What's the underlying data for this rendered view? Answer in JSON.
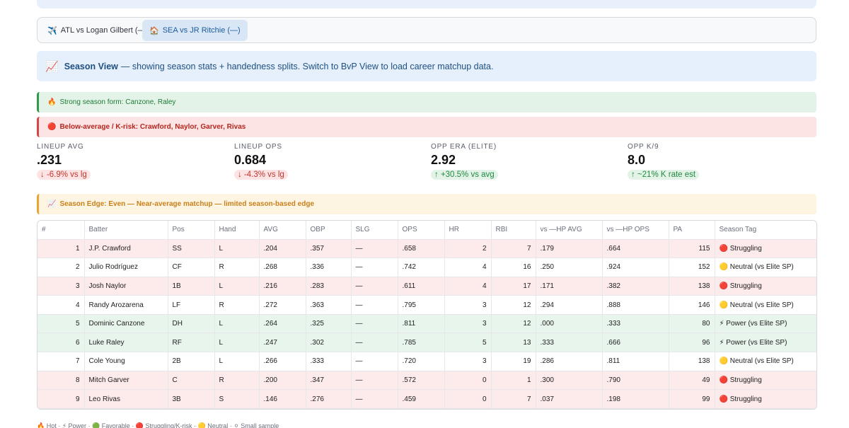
{
  "tabs": [
    {
      "icon": "✈️",
      "label": "ATL vs Logan Gilbert (—)"
    },
    {
      "icon": "🏠",
      "label": "SEA vs JR Ritchie (—)"
    }
  ],
  "info": {
    "icon": "📈",
    "title": "Season View",
    "text": "— showing season stats + handedness splits. Switch to BvP View to load career matchup data."
  },
  "alerts": {
    "green": {
      "icon": "🔥",
      "text": "Strong season form: Canzone, Raley"
    },
    "red": {
      "icon": "🔴",
      "text": "Below-average / K-risk: Crawford, Naylor, Garver, Rivas"
    }
  },
  "metrics": [
    {
      "label": "LINEUP AVG",
      "value": ".231",
      "delta": "↓ -6.9% vs lg"
    },
    {
      "label": "LINEUP OPS",
      "value": "0.684",
      "delta": "↓ -4.3% vs lg"
    },
    {
      "label": "OPP ERA (ELITE)",
      "value": "2.92",
      "delta": "↑ +30.5% vs avg"
    },
    {
      "label": "OPP K/9",
      "value": "8.0",
      "delta": "↑ ~21% K rate est"
    }
  ],
  "edge": {
    "icon": "📈",
    "text": "Season Edge: Even — Near-average matchup — limited season-based edge"
  },
  "table": {
    "headers": [
      "#",
      "Batter",
      "Pos",
      "Hand",
      "AVG",
      "OBP",
      "SLG",
      "OPS",
      "HR",
      "RBI",
      "vs —HP AVG",
      "vs —HP OPS",
      "PA",
      "Season Tag"
    ],
    "rows": [
      {
        "n": "1",
        "batter": "J.P. Crawford",
        "pos": "SS",
        "hand": "L",
        "avg": ".204",
        "obp": ".357",
        "slg": "—",
        "ops": ".658",
        "hr": "2",
        "rbi": "7",
        "vavg": ".179",
        "vops": ".664",
        "pa": "115",
        "tag": "🔴 Struggling",
        "tone": "red"
      },
      {
        "n": "2",
        "batter": "Julio Rodríguez",
        "pos": "CF",
        "hand": "R",
        "avg": ".268",
        "obp": ".336",
        "slg": "—",
        "ops": ".742",
        "hr": "4",
        "rbi": "16",
        "vavg": ".250",
        "vops": ".924",
        "pa": "152",
        "tag": "🟡 Neutral (vs Elite SP)",
        "tone": "white"
      },
      {
        "n": "3",
        "batter": "Josh Naylor",
        "pos": "1B",
        "hand": "L",
        "avg": ".216",
        "obp": ".283",
        "slg": "—",
        "ops": ".611",
        "hr": "4",
        "rbi": "17",
        "vavg": ".171",
        "vops": ".382",
        "pa": "138",
        "tag": "🔴 Struggling",
        "tone": "red"
      },
      {
        "n": "4",
        "batter": "Randy Arozarena",
        "pos": "LF",
        "hand": "R",
        "avg": ".272",
        "obp": ".363",
        "slg": "—",
        "ops": ".795",
        "hr": "3",
        "rbi": "12",
        "vavg": ".294",
        "vops": ".888",
        "pa": "146",
        "tag": "🟡 Neutral (vs Elite SP)",
        "tone": "white"
      },
      {
        "n": "5",
        "batter": "Dominic Canzone",
        "pos": "DH",
        "hand": "L",
        "avg": ".264",
        "obp": ".325",
        "slg": "—",
        "ops": ".811",
        "hr": "3",
        "rbi": "12",
        "vavg": ".000",
        "vops": ".333",
        "pa": "80",
        "tag": "⚡ Power (vs Elite SP)",
        "tone": "green"
      },
      {
        "n": "6",
        "batter": "Luke Raley",
        "pos": "RF",
        "hand": "L",
        "avg": ".247",
        "obp": ".302",
        "slg": "—",
        "ops": ".785",
        "hr": "5",
        "rbi": "13",
        "vavg": ".333",
        "vops": ".666",
        "pa": "96",
        "tag": "⚡ Power (vs Elite SP)",
        "tone": "green"
      },
      {
        "n": "7",
        "batter": "Cole Young",
        "pos": "2B",
        "hand": "L",
        "avg": ".266",
        "obp": ".333",
        "slg": "—",
        "ops": ".720",
        "hr": "3",
        "rbi": "19",
        "vavg": ".286",
        "vops": ".811",
        "pa": "138",
        "tag": "🟡 Neutral (vs Elite SP)",
        "tone": "white"
      },
      {
        "n": "8",
        "batter": "Mitch Garver",
        "pos": "C",
        "hand": "R",
        "avg": ".200",
        "obp": ".347",
        "slg": "—",
        "ops": ".572",
        "hr": "0",
        "rbi": "1",
        "vavg": ".300",
        "vops": ".790",
        "pa": "49",
        "tag": "🔴 Struggling",
        "tone": "red"
      },
      {
        "n": "9",
        "batter": "Leo Rivas",
        "pos": "3B",
        "hand": "S",
        "avg": ".146",
        "obp": ".276",
        "slg": "—",
        "ops": ".459",
        "hr": "0",
        "rbi": "7",
        "vavg": ".037",
        "vops": ".198",
        "pa": "99",
        "tag": "🔴 Struggling",
        "tone": "red"
      }
    ]
  },
  "legend": "🔥 Hot · ⚡ Power · 🟢 Favorable · 🔴 Struggling/K-risk · 🟡 Neutral · ⚪ Small sample"
}
